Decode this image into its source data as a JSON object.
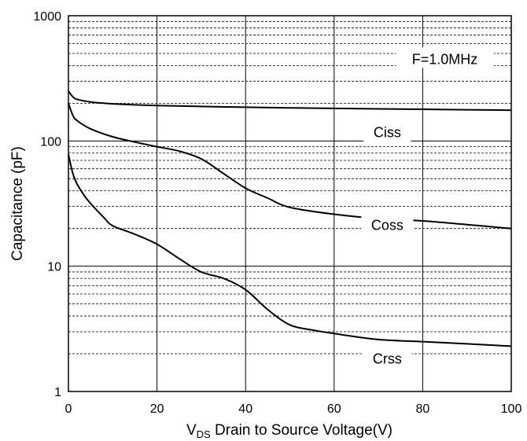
{
  "chart_data": {
    "type": "line",
    "title": "",
    "xlabel_main": "V",
    "xlabel_sub": "DS",
    "xlabel_rest": " Drain to Source Voltage(V)",
    "ylabel": "Capacitance (pF)",
    "xlim": [
      0,
      100
    ],
    "ylim": [
      1,
      1000
    ],
    "yscale": "log",
    "grid": true,
    "x_ticks": [
      "0",
      "20",
      "40",
      "60",
      "80",
      "100"
    ],
    "y_ticks": [
      "1",
      "10",
      "100",
      "1000"
    ],
    "annotation": "F=1.0MHz",
    "series": [
      {
        "name": "Ciss",
        "x": [
          0,
          1,
          2,
          5,
          10,
          20,
          40,
          60,
          80,
          100
        ],
        "y": [
          250,
          225,
          215,
          205,
          198,
          192,
          186,
          182,
          179,
          176
        ]
      },
      {
        "name": "Coss",
        "x": [
          0,
          1,
          2,
          5,
          10,
          15,
          20,
          25,
          30,
          35,
          40,
          45,
          50,
          60,
          70,
          80,
          90,
          100
        ],
        "y": [
          200,
          160,
          145,
          125,
          108,
          98,
          90,
          83,
          72,
          55,
          42,
          35,
          29.5,
          26,
          24,
          23,
          21.5,
          20
        ]
      },
      {
        "name": "Crss",
        "x": [
          0,
          1,
          2,
          4,
          6,
          8,
          10,
          15,
          20,
          25,
          30,
          35,
          40,
          45,
          50,
          55,
          60,
          70,
          80,
          90,
          100
        ],
        "y": [
          78,
          55,
          45,
          35,
          29,
          24.5,
          21,
          18,
          15,
          11.5,
          9,
          8,
          6.5,
          4.5,
          3.4,
          3.1,
          2.9,
          2.6,
          2.5,
          2.4,
          2.3
        ]
      }
    ]
  }
}
